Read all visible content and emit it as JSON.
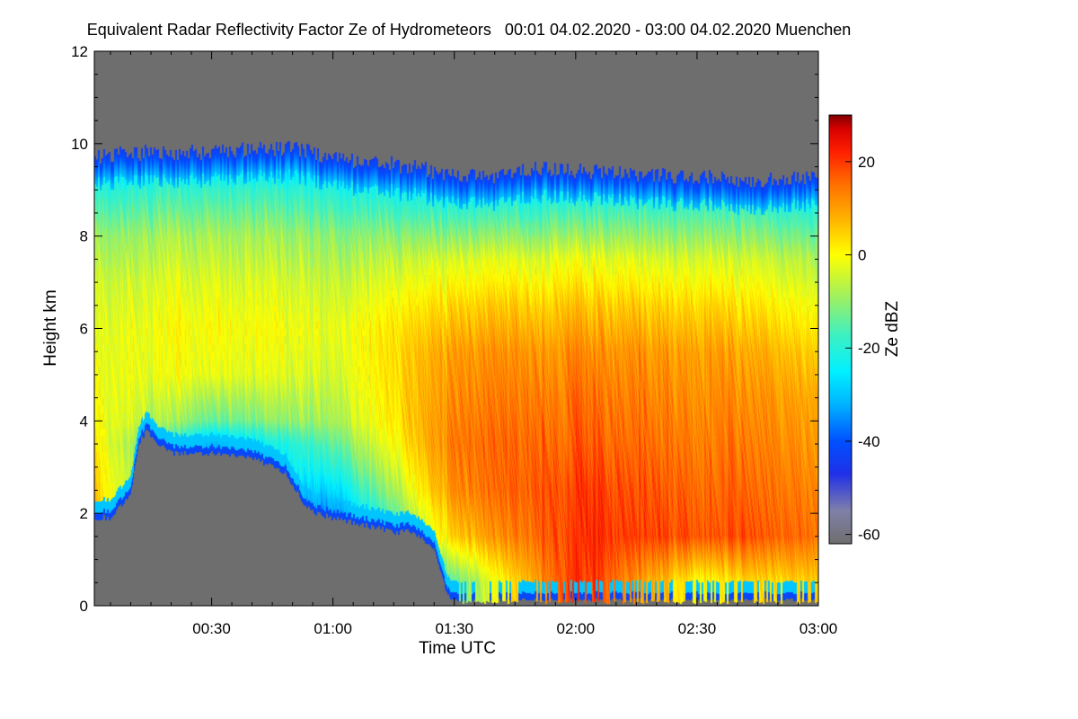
{
  "chart_data": {
    "type": "heatmap",
    "title": "Equivalent Radar Reflectivity Factor Ze of Hydrometeors   00:01 04.02.2020 - 03:00 04.02.2020 Muenchen",
    "xlabel": "Time UTC",
    "ylabel": "Height km",
    "x_unit": "minutes UTC",
    "xlim": [
      1,
      180
    ],
    "ylim": [
      0,
      12
    ],
    "x_ticks": [
      {
        "value": 30,
        "label": "00:30"
      },
      {
        "value": 60,
        "label": "01:00"
      },
      {
        "value": 90,
        "label": "01:30"
      },
      {
        "value": 120,
        "label": "02:00"
      },
      {
        "value": 150,
        "label": "02:30"
      },
      {
        "value": 180,
        "label": "03:00"
      }
    ],
    "y_ticks": [
      {
        "value": 0,
        "label": "0"
      },
      {
        "value": 2,
        "label": "2"
      },
      {
        "value": 4,
        "label": "4"
      },
      {
        "value": 6,
        "label": "6"
      },
      {
        "value": 8,
        "label": "8"
      },
      {
        "value": 10,
        "label": "10"
      },
      {
        "value": 12,
        "label": "12"
      }
    ],
    "colorbar": {
      "label": "Ze dBZ",
      "range": [
        -62,
        30
      ],
      "ticks": [
        {
          "value": 20,
          "label": "20"
        },
        {
          "value": 0,
          "label": "0"
        },
        {
          "value": -20,
          "label": "-20"
        },
        {
          "value": -40,
          "label": "-40"
        },
        {
          "value": -60,
          "label": "-60"
        }
      ],
      "colors": [
        {
          "value": -62,
          "color": "#6e6e6e"
        },
        {
          "value": -55,
          "color": "#8080a8"
        },
        {
          "value": -47,
          "color": "#2030e8"
        },
        {
          "value": -40,
          "color": "#0050ff"
        },
        {
          "value": -32,
          "color": "#00b4ff"
        },
        {
          "value": -25,
          "color": "#00f0ff"
        },
        {
          "value": -17,
          "color": "#40f0c0"
        },
        {
          "value": -9,
          "color": "#a0f060"
        },
        {
          "value": 0,
          "color": "#ffff00"
        },
        {
          "value": 8,
          "color": "#ffb000"
        },
        {
          "value": 15,
          "color": "#ff7000"
        },
        {
          "value": 22,
          "color": "#ff2000"
        },
        {
          "value": 27,
          "color": "#d80000"
        },
        {
          "value": 30,
          "color": "#800000"
        }
      ]
    },
    "background_color": "#808080",
    "echo_top_km": [
      [
        1,
        9.7
      ],
      [
        10,
        9.8
      ],
      [
        20,
        9.8
      ],
      [
        30,
        9.8
      ],
      [
        40,
        9.9
      ],
      [
        50,
        9.9
      ],
      [
        60,
        9.7
      ],
      [
        70,
        9.6
      ],
      [
        80,
        9.5
      ],
      [
        90,
        9.3
      ],
      [
        100,
        9.3
      ],
      [
        110,
        9.5
      ],
      [
        120,
        9.4
      ],
      [
        130,
        9.4
      ],
      [
        140,
        9.3
      ],
      [
        150,
        9.3
      ],
      [
        160,
        9.2
      ],
      [
        170,
        9.2
      ],
      [
        180,
        9.3
      ]
    ],
    "echo_base_km": [
      [
        1,
        1.9
      ],
      [
        5,
        1.9
      ],
      [
        10,
        2.4
      ],
      [
        12,
        3.5
      ],
      [
        14,
        3.8
      ],
      [
        17,
        3.5
      ],
      [
        20,
        3.3
      ],
      [
        30,
        3.3
      ],
      [
        40,
        3.2
      ],
      [
        48,
        2.9
      ],
      [
        53,
        2.2
      ],
      [
        56,
        2.0
      ],
      [
        60,
        1.9
      ],
      [
        65,
        1.8
      ],
      [
        70,
        1.7
      ],
      [
        75,
        1.6
      ],
      [
        80,
        1.6
      ],
      [
        83,
        1.4
      ],
      [
        85,
        1.2
      ],
      [
        87,
        0.6
      ],
      [
        89,
        0.1
      ]
    ],
    "reflectivity_profiles_dBZ": [
      {
        "time": 1,
        "height_km": [
          2,
          3,
          4,
          5,
          6,
          7,
          8,
          9,
          9.6
        ],
        "ze": [
          6,
          4,
          0,
          -2,
          -3,
          -5,
          -10,
          -20,
          -28
        ]
      },
      {
        "time": 30,
        "height_km": [
          3.5,
          4,
          5,
          6,
          7,
          8,
          9,
          9.7
        ],
        "ze": [
          -32,
          -14,
          -2,
          0,
          -3,
          -8,
          -18,
          -30
        ]
      },
      {
        "time": 60,
        "height_km": [
          2,
          3,
          4,
          5,
          6,
          7,
          8,
          9,
          9.6
        ],
        "ze": [
          -35,
          -20,
          -8,
          -4,
          -2,
          -5,
          -10,
          -20,
          -30
        ]
      },
      {
        "time": 90,
        "height_km": [
          0.5,
          1.5,
          2.5,
          3.5,
          4.5,
          5.5,
          6.5,
          7.5,
          8.5,
          9.2
        ],
        "ze": [
          -15,
          5,
          12,
          14,
          12,
          10,
          4,
          -4,
          -18,
          -28
        ]
      },
      {
        "time": 120,
        "height_km": [
          0.5,
          1.5,
          2.5,
          3.5,
          4.5,
          5.5,
          6.5,
          7.5,
          8.5,
          9.3
        ],
        "ze": [
          22,
          21,
          20,
          17,
          15,
          12,
          6,
          -2,
          -16,
          -28
        ]
      },
      {
        "time": 150,
        "height_km": [
          0.5,
          1.5,
          2.5,
          3.5,
          4.5,
          5.5,
          6.5,
          7.5,
          8.5,
          9.2
        ],
        "ze": [
          0,
          18,
          16,
          14,
          12,
          10,
          4,
          -4,
          -16,
          -28
        ]
      },
      {
        "time": 180,
        "height_km": [
          0.5,
          1.5,
          2.5,
          3.5,
          4.5,
          5.5,
          6.5,
          7.5,
          8.5,
          9.2
        ],
        "ze": [
          6,
          16,
          14,
          12,
          10,
          6,
          0,
          -6,
          -18,
          -30
        ]
      }
    ]
  }
}
